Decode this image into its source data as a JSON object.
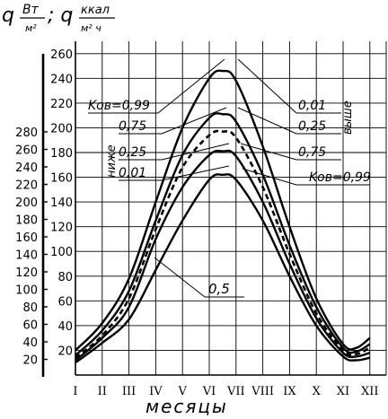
{
  "chart_data": {
    "type": "line",
    "ylabel_main": "q",
    "ylabel_unit1_num": "Вт",
    "ylabel_unit1_den": "м²",
    "ylabel_sep": "; q",
    "ylabel_unit2_num": "ккал",
    "ylabel_unit2_den": "м² ч",
    "xlabel": "месяцы",
    "categories": [
      "I",
      "II",
      "III",
      "IV",
      "V",
      "VI",
      "VII",
      "VIII",
      "IX",
      "X",
      "XI",
      "XII"
    ],
    "y_right_ticks": [
      20,
      40,
      60,
      80,
      100,
      120,
      140,
      160,
      180,
      200,
      220,
      240,
      260
    ],
    "y_right_range": [
      0,
      270
    ],
    "y_left_ticks": [
      20,
      40,
      60,
      80,
      100,
      120,
      140,
      160,
      180,
      200,
      220,
      240,
      260,
      280
    ],
    "grid": true,
    "series": [
      {
        "name": "0,01",
        "style": "solid",
        "x": [
          1,
          2,
          3,
          4,
          5,
          6,
          6.5,
          7,
          8,
          9,
          10,
          11,
          11.5,
          12
        ],
        "values": [
          20,
          42,
          78,
          140,
          200,
          240,
          246,
          238,
          185,
          120,
          62,
          25,
          22,
          30
        ]
      },
      {
        "name": "0,25",
        "style": "solid",
        "x": [
          1,
          2,
          3,
          4,
          5,
          6,
          6.5,
          7,
          8,
          9,
          10,
          11,
          11.5,
          12
        ],
        "values": [
          16,
          36,
          68,
          125,
          178,
          208,
          211,
          205,
          162,
          105,
          55,
          22,
          19,
          25
        ]
      },
      {
        "name": "0,5",
        "style": "dashed",
        "x": [
          1,
          2,
          3,
          4,
          5,
          6,
          6.5,
          7,
          8,
          9,
          10,
          11,
          11.5,
          12
        ],
        "values": [
          14,
          32,
          62,
          118,
          168,
          194,
          197,
          192,
          152,
          98,
          50,
          20,
          17,
          22
        ]
      },
      {
        "name": "0,75",
        "style": "solid",
        "x": [
          1,
          2,
          3,
          4,
          5,
          6,
          6.5,
          7,
          8,
          9,
          10,
          11,
          11.5,
          12
        ],
        "values": [
          12,
          30,
          55,
          110,
          152,
          178,
          181,
          177,
          140,
          90,
          46,
          18,
          15,
          18
        ]
      },
      {
        "name": "0,99",
        "style": "solid",
        "x": [
          1,
          2,
          3,
          4,
          5,
          6,
          6.5,
          7,
          8,
          9,
          10,
          11,
          11.5,
          12
        ],
        "values": [
          10,
          26,
          45,
          85,
          125,
          158,
          162,
          158,
          125,
          80,
          40,
          15,
          12,
          14
        ]
      }
    ],
    "annotations": {
      "left": [
        "Kов=0,99",
        "0,75",
        "0,25",
        "0,01"
      ],
      "left_word": "ниже",
      "right": [
        "0,01",
        "0,25",
        "0,75",
        "Kов=0,99"
      ],
      "right_word": "выше",
      "median": "0,5"
    }
  }
}
